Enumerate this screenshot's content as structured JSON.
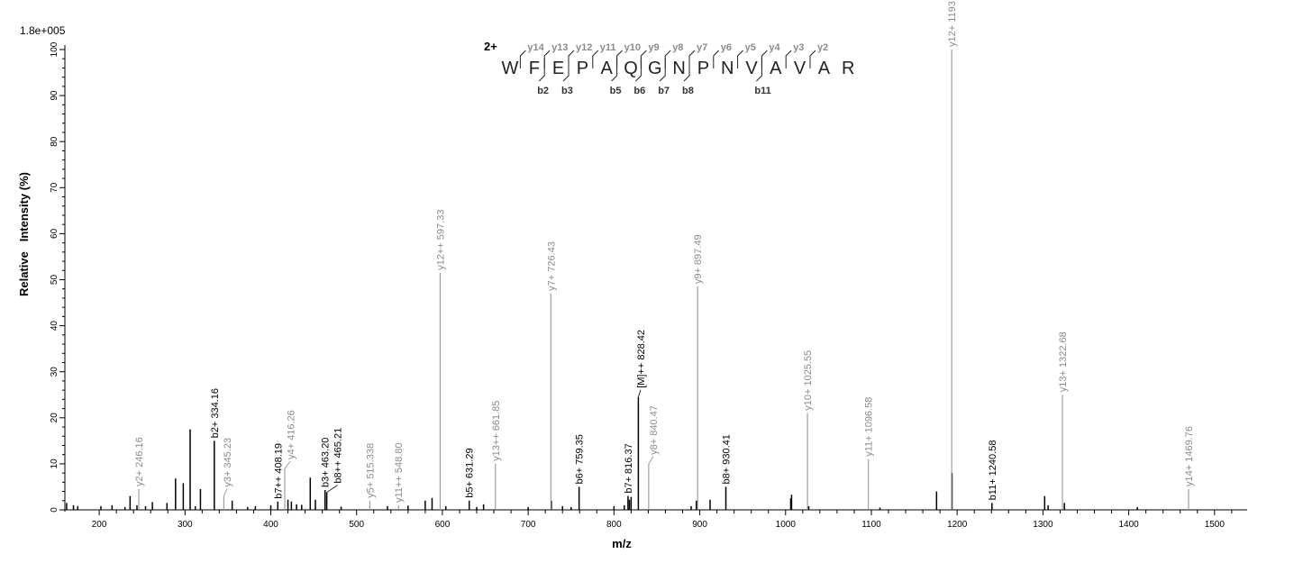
{
  "chart_data": {
    "type": "bar",
    "title": "",
    "scale_label": "1.8e+005",
    "xlabel": "m/z",
    "ylabel": "Relative   Intensity (%)",
    "xlim": [
      160,
      1538
    ],
    "ylim": [
      0,
      100
    ],
    "x_ticks": [
      200,
      300,
      400,
      500,
      600,
      700,
      800,
      900,
      1000,
      1100,
      1200,
      1300,
      1400,
      1500
    ],
    "y_ticks": [
      0,
      10,
      20,
      30,
      40,
      50,
      60,
      70,
      80,
      90,
      100
    ],
    "grid": false,
    "colors": {
      "y_ion": "#8c8c8c",
      "b_ion": "#000000",
      "other": "#000000"
    },
    "peptide": {
      "charge": "2+",
      "sequence": [
        "W",
        "F",
        "E",
        "P",
        "A",
        "Q",
        "G",
        "N",
        "P",
        "N",
        "V",
        "A",
        "V",
        "A",
        "R"
      ],
      "y_ions": [
        "y14",
        "y13",
        "y12",
        "y11",
        "y10",
        "y9",
        "y8",
        "y7",
        "y6",
        "y5",
        "y4",
        "y3",
        "y2"
      ],
      "b_ions": [
        {
          "after": 2,
          "label": "b2"
        },
        {
          "after": 3,
          "label": "b3"
        },
        {
          "after": 5,
          "label": "b5"
        },
        {
          "after": 6,
          "label": "b6"
        },
        {
          "after": 7,
          "label": "b7"
        },
        {
          "after": 8,
          "label": "b8"
        },
        {
          "after": 11,
          "label": "b11"
        }
      ]
    },
    "labeled_peaks": [
      {
        "mz": 246.16,
        "intensity": 4.5,
        "label": "y2+ 246.16",
        "ion": "y"
      },
      {
        "mz": 334.16,
        "intensity": 15,
        "label": "b2+ 334.16",
        "ion": "b"
      },
      {
        "mz": 345.23,
        "intensity": 3,
        "label": "y3+ 345.23",
        "ion": "y"
      },
      {
        "mz": 408.19,
        "intensity": 1.8,
        "label": "b7++ 408.19",
        "ion": "b"
      },
      {
        "mz": 416.26,
        "intensity": 9,
        "label": "y4+ 416.26",
        "ion": "y"
      },
      {
        "mz": 463.2,
        "intensity": 4.3,
        "label": "b3+ 463.20",
        "ion": "b"
      },
      {
        "mz": 465.21,
        "intensity": 3.8,
        "label": "b8++ 465.21",
        "ion": "b"
      },
      {
        "mz": 515.33,
        "intensity": 2,
        "label": "y5+ 515.338",
        "ion": "y"
      },
      {
        "mz": 548.8,
        "intensity": 1,
        "label": "y11++ 548.80",
        "ion": "y"
      },
      {
        "mz": 597.33,
        "intensity": 51.5,
        "label": "y12++ 597.33",
        "ion": "y"
      },
      {
        "mz": 631.29,
        "intensity": 2,
        "label": "b5+ 631.29",
        "ion": "b"
      },
      {
        "mz": 661.85,
        "intensity": 10,
        "label": "y13++ 661.85",
        "ion": "y"
      },
      {
        "mz": 726.43,
        "intensity": 47,
        "label": "y7+ 726.43",
        "ion": "y"
      },
      {
        "mz": 759.35,
        "intensity": 5,
        "label": "b6+ 759.35",
        "ion": "b"
      },
      {
        "mz": 816.37,
        "intensity": 3,
        "label": "b7+ 816.37",
        "ion": "b"
      },
      {
        "mz": 828.42,
        "intensity": 24.5,
        "label": "[M]++ 828.42",
        "ion": "b"
      },
      {
        "mz": 840.47,
        "intensity": 10,
        "label": "y8+ 840.47",
        "ion": "y"
      },
      {
        "mz": 897.49,
        "intensity": 48.5,
        "label": "y9+ 897.49",
        "ion": "y"
      },
      {
        "mz": 930.41,
        "intensity": 5,
        "label": "b8+ 930.41",
        "ion": "b"
      },
      {
        "mz": 1025.55,
        "intensity": 21,
        "label": "y10+ 1025.55",
        "ion": "y"
      },
      {
        "mz": 1096.58,
        "intensity": 11,
        "label": "y11+ 1096.58",
        "ion": "y"
      },
      {
        "mz": 1193.64,
        "intensity": 100,
        "label": "y12+ 1193.64",
        "ion": "y"
      },
      {
        "mz": 1240.58,
        "intensity": 1.5,
        "label": "b11+ 1240.58",
        "ion": "b"
      },
      {
        "mz": 1322.68,
        "intensity": 25,
        "label": "y13+ 1322.68",
        "ion": "y"
      },
      {
        "mz": 1469.76,
        "intensity": 4.5,
        "label": "y14+ 1469.76",
        "ion": "y"
      }
    ],
    "unlabeled_peaks": [
      [
        162,
        1.5
      ],
      [
        170,
        1
      ],
      [
        175,
        0.8
      ],
      [
        202,
        0.8
      ],
      [
        215,
        1
      ],
      [
        230,
        0.6
      ],
      [
        236,
        3
      ],
      [
        244,
        1
      ],
      [
        254,
        0.8
      ],
      [
        262,
        1.7
      ],
      [
        279,
        1.5
      ],
      [
        289,
        6.8
      ],
      [
        298,
        5.8
      ],
      [
        306,
        17.5
      ],
      [
        312,
        0.8
      ],
      [
        318,
        4.5
      ],
      [
        355,
        2
      ],
      [
        373,
        0.6
      ],
      [
        382,
        0.8
      ],
      [
        400,
        1
      ],
      [
        420,
        2.2
      ],
      [
        424,
        1.8
      ],
      [
        430,
        1.2
      ],
      [
        436,
        1.1
      ],
      [
        446,
        7
      ],
      [
        452,
        2.2
      ],
      [
        482,
        0.7
      ],
      [
        536,
        0.8
      ],
      [
        560,
        0.9
      ],
      [
        580,
        2
      ],
      [
        588,
        2.6
      ],
      [
        604,
        0.8
      ],
      [
        640,
        0.6
      ],
      [
        648,
        1.2
      ],
      [
        700,
        0.6
      ],
      [
        727,
        2
      ],
      [
        740,
        0.8
      ],
      [
        750,
        0.6
      ],
      [
        800,
        0.8
      ],
      [
        812,
        1
      ],
      [
        818,
        2.2
      ],
      [
        820,
        2.8
      ],
      [
        890,
        0.8
      ],
      [
        896,
        2
      ],
      [
        912,
        2.2
      ],
      [
        1006,
        2.5
      ],
      [
        1007,
        3.3
      ],
      [
        1027,
        0.8
      ],
      [
        1110,
        0.5
      ],
      [
        1176,
        4
      ],
      [
        1194,
        8
      ],
      [
        1302,
        3
      ],
      [
        1306,
        1
      ],
      [
        1325,
        1.5
      ],
      [
        1410,
        0.6
      ]
    ]
  }
}
